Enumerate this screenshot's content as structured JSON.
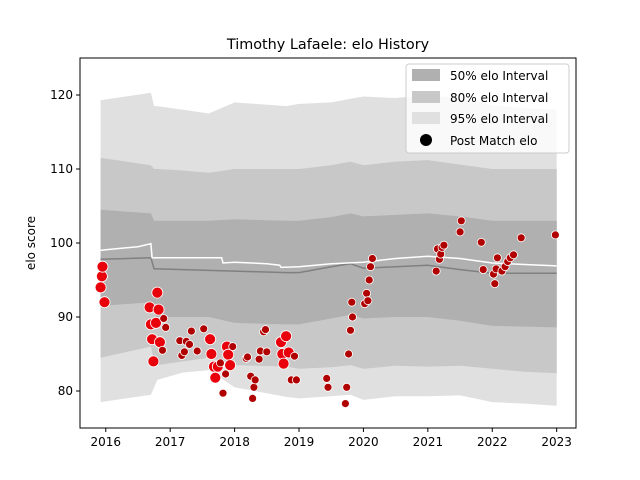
{
  "chart_data": {
    "type": "scatter",
    "title": "Timothy Lafaele: elo History",
    "xlabel": "",
    "ylabel": "elo score",
    "xlim": [
      2015.6,
      2023.3
    ],
    "ylim": [
      75,
      125
    ],
    "x_ticks": [
      2016,
      2017,
      2018,
      2019,
      2020,
      2021,
      2022,
      2023
    ],
    "x_tick_labels": [
      "2016",
      "2017",
      "2018",
      "2019",
      "2020",
      "2021",
      "2022",
      "2023"
    ],
    "y_ticks": [
      80,
      90,
      100,
      110,
      120
    ],
    "y_tick_labels": [
      "80",
      "90",
      "100",
      "110",
      "120"
    ],
    "legend_position": "top-right",
    "legend": [
      {
        "label": "50% elo Interval",
        "kind": "patch",
        "color": "#b0b0b0"
      },
      {
        "label": "80% elo Interval",
        "kind": "patch",
        "color": "#c8c8c8"
      },
      {
        "label": "95% elo Interval",
        "kind": "patch",
        "color": "#e0e0e0"
      },
      {
        "label": "Post Match elo",
        "kind": "marker",
        "color": "#000000"
      }
    ],
    "colors": {
      "band95": "#e0e0e0",
      "band80": "#c8c8c8",
      "band50": "#b0b0b0",
      "median_line": "#808080",
      "mean_line": "#ffffff",
      "points": "#e8000b",
      "points_dark": "#b00000"
    },
    "bands": {
      "x": [
        2015.92,
        2016.7,
        2016.75,
        2016.8,
        2017.2,
        2017.6,
        2018.0,
        2018.8,
        2019.0,
        2019.5,
        2019.8,
        2020.0,
        2020.5,
        2021.0,
        2021.5,
        2022.0,
        2022.5,
        2023.0
      ],
      "p95_low": [
        78.5,
        79.5,
        80.5,
        81.5,
        82.5,
        82.8,
        80.5,
        79.2,
        79.0,
        79.3,
        79.5,
        78.8,
        79.3,
        79.3,
        79.4,
        78.5,
        78.3,
        78.0
      ],
      "p80_low": [
        84.5,
        86.0,
        84.0,
        83.5,
        84.0,
        84.5,
        83.5,
        83.3,
        83.0,
        83.2,
        83.5,
        83.0,
        83.4,
        83.3,
        83.4,
        83.0,
        82.6,
        82.4
      ],
      "p50_low": [
        91.5,
        92.0,
        90.5,
        90.0,
        90.0,
        90.0,
        89.2,
        89.0,
        89.0,
        89.8,
        90.3,
        89.8,
        90.0,
        90.0,
        89.5,
        88.8,
        88.7,
        88.6
      ],
      "median": [
        97.8,
        98.0,
        96.5,
        96.5,
        96.4,
        96.3,
        96.2,
        96.0,
        96.0,
        96.8,
        97.2,
        96.6,
        96.8,
        97.0,
        96.4,
        95.9,
        95.9,
        95.9
      ],
      "p50_high": [
        104.5,
        104.0,
        103.0,
        103.0,
        103.0,
        103.0,
        103.2,
        103.0,
        103.0,
        103.5,
        104.0,
        103.6,
        103.8,
        104.0,
        103.6,
        103.0,
        103.0,
        103.0
      ],
      "p80_high": [
        111.5,
        110.5,
        110.0,
        110.0,
        109.8,
        109.5,
        110.0,
        110.0,
        110.0,
        110.5,
        111.0,
        110.5,
        111.0,
        111.2,
        110.6,
        110.0,
        110.0,
        110.0
      ],
      "p95_high": [
        119.3,
        120.3,
        118.5,
        118.5,
        118.0,
        117.5,
        119.0,
        118.5,
        118.8,
        119.0,
        119.5,
        119.8,
        119.6,
        120.0,
        119.5,
        118.6,
        118.2,
        118.0
      ]
    },
    "mean": {
      "x": [
        2015.92,
        2016.0,
        2016.5,
        2016.7,
        2016.72,
        2016.9,
        2017.5,
        2017.8,
        2017.82,
        2018.0,
        2018.5,
        2018.7,
        2018.72,
        2019.0,
        2019.5,
        2020.0,
        2020.5,
        2021.0,
        2021.5,
        2022.0,
        2022.5,
        2023.0
      ],
      "y": [
        99.0,
        99.1,
        99.5,
        99.9,
        98.0,
        98.0,
        98.0,
        98.0,
        97.3,
        97.4,
        97.2,
        97.0,
        96.7,
        96.8,
        97.2,
        97.4,
        97.9,
        98.2,
        97.9,
        97.3,
        97.1,
        96.9
      ]
    },
    "series": [
      {
        "name": "Post Match elo",
        "points": [
          {
            "x": 2015.92,
            "y": 94.0,
            "big": true
          },
          {
            "x": 2015.94,
            "y": 95.5,
            "big": true
          },
          {
            "x": 2015.95,
            "y": 96.8,
            "big": true
          },
          {
            "x": 2015.98,
            "y": 92.0,
            "big": true
          },
          {
            "x": 2016.68,
            "y": 91.3,
            "big": true
          },
          {
            "x": 2016.7,
            "y": 89.0,
            "big": true
          },
          {
            "x": 2016.72,
            "y": 87.0,
            "big": true
          },
          {
            "x": 2016.74,
            "y": 84.0,
            "big": true
          },
          {
            "x": 2016.78,
            "y": 89.2,
            "big": true
          },
          {
            "x": 2016.8,
            "y": 93.3,
            "big": true
          },
          {
            "x": 2016.82,
            "y": 91.0,
            "big": true
          },
          {
            "x": 2016.84,
            "y": 86.6,
            "big": true
          },
          {
            "x": 2016.88,
            "y": 85.5,
            "big": false
          },
          {
            "x": 2016.9,
            "y": 89.8,
            "big": false
          },
          {
            "x": 2016.93,
            "y": 88.6,
            "big": false
          },
          {
            "x": 2017.15,
            "y": 86.8,
            "big": false
          },
          {
            "x": 2017.18,
            "y": 84.8,
            "big": false
          },
          {
            "x": 2017.22,
            "y": 85.3,
            "big": false
          },
          {
            "x": 2017.25,
            "y": 86.7,
            "big": false
          },
          {
            "x": 2017.3,
            "y": 86.3,
            "big": false
          },
          {
            "x": 2017.33,
            "y": 88.1,
            "big": false
          },
          {
            "x": 2017.42,
            "y": 85.4,
            "big": false
          },
          {
            "x": 2017.52,
            "y": 88.4,
            "big": false
          },
          {
            "x": 2017.62,
            "y": 87.0,
            "big": true
          },
          {
            "x": 2017.64,
            "y": 85.0,
            "big": true
          },
          {
            "x": 2017.68,
            "y": 83.3,
            "big": true
          },
          {
            "x": 2017.7,
            "y": 81.8,
            "big": true
          },
          {
            "x": 2017.74,
            "y": 83.3,
            "big": true
          },
          {
            "x": 2017.78,
            "y": 83.8,
            "big": false
          },
          {
            "x": 2017.82,
            "y": 79.7,
            "big": false
          },
          {
            "x": 2017.86,
            "y": 82.3,
            "big": false
          },
          {
            "x": 2017.88,
            "y": 86.0,
            "big": true
          },
          {
            "x": 2017.9,
            "y": 84.9,
            "big": true
          },
          {
            "x": 2017.93,
            "y": 83.5,
            "big": true
          },
          {
            "x": 2017.97,
            "y": 86.0,
            "big": false
          },
          {
            "x": 2018.18,
            "y": 84.4,
            "big": false
          },
          {
            "x": 2018.2,
            "y": 84.6,
            "big": false
          },
          {
            "x": 2018.25,
            "y": 82.0,
            "big": false
          },
          {
            "x": 2018.28,
            "y": 79.0,
            "big": false
          },
          {
            "x": 2018.3,
            "y": 80.5,
            "big": false
          },
          {
            "x": 2018.32,
            "y": 81.5,
            "big": false
          },
          {
            "x": 2018.38,
            "y": 84.3,
            "big": false
          },
          {
            "x": 2018.4,
            "y": 85.4,
            "big": false
          },
          {
            "x": 2018.45,
            "y": 88.0,
            "big": false
          },
          {
            "x": 2018.48,
            "y": 88.3,
            "big": false
          },
          {
            "x": 2018.5,
            "y": 85.3,
            "big": false
          },
          {
            "x": 2018.72,
            "y": 86.6,
            "big": true
          },
          {
            "x": 2018.74,
            "y": 85.0,
            "big": true
          },
          {
            "x": 2018.76,
            "y": 83.7,
            "big": true
          },
          {
            "x": 2018.8,
            "y": 87.4,
            "big": true
          },
          {
            "x": 2018.84,
            "y": 85.2,
            "big": true
          },
          {
            "x": 2018.88,
            "y": 81.5,
            "big": false
          },
          {
            "x": 2018.93,
            "y": 84.7,
            "big": false
          },
          {
            "x": 2018.96,
            "y": 81.5,
            "big": false
          },
          {
            "x": 2019.43,
            "y": 81.7,
            "big": false
          },
          {
            "x": 2019.45,
            "y": 80.5,
            "big": false
          },
          {
            "x": 2019.72,
            "y": 78.3,
            "big": false
          },
          {
            "x": 2019.74,
            "y": 80.5,
            "big": false
          },
          {
            "x": 2019.77,
            "y": 85.0,
            "big": false
          },
          {
            "x": 2019.8,
            "y": 88.2,
            "big": false
          },
          {
            "x": 2019.83,
            "y": 90.0,
            "big": false
          },
          {
            "x": 2019.82,
            "y": 92.0,
            "big": false
          },
          {
            "x": 2020.02,
            "y": 91.8,
            "big": false
          },
          {
            "x": 2020.05,
            "y": 93.2,
            "big": false
          },
          {
            "x": 2020.07,
            "y": 92.2,
            "big": false
          },
          {
            "x": 2020.09,
            "y": 95.0,
            "big": false
          },
          {
            "x": 2020.11,
            "y": 96.8,
            "big": false
          },
          {
            "x": 2020.14,
            "y": 97.9,
            "big": false
          },
          {
            "x": 2021.13,
            "y": 96.2,
            "big": false
          },
          {
            "x": 2021.15,
            "y": 99.2,
            "big": false
          },
          {
            "x": 2021.18,
            "y": 97.8,
            "big": false
          },
          {
            "x": 2021.2,
            "y": 98.5,
            "big": false
          },
          {
            "x": 2021.22,
            "y": 99.4,
            "big": false
          },
          {
            "x": 2021.25,
            "y": 99.7,
            "big": false
          },
          {
            "x": 2021.5,
            "y": 101.5,
            "big": false
          },
          {
            "x": 2021.52,
            "y": 103.0,
            "big": false
          },
          {
            "x": 2021.83,
            "y": 100.1,
            "big": false
          },
          {
            "x": 2021.86,
            "y": 96.4,
            "big": false
          },
          {
            "x": 2022.02,
            "y": 95.8,
            "big": false
          },
          {
            "x": 2022.04,
            "y": 94.5,
            "big": false
          },
          {
            "x": 2022.06,
            "y": 96.5,
            "big": false
          },
          {
            "x": 2022.08,
            "y": 98.0,
            "big": false
          },
          {
            "x": 2022.15,
            "y": 96.2,
            "big": false
          },
          {
            "x": 2022.2,
            "y": 96.8,
            "big": false
          },
          {
            "x": 2022.24,
            "y": 97.5,
            "big": false
          },
          {
            "x": 2022.28,
            "y": 98.0,
            "big": false
          },
          {
            "x": 2022.33,
            "y": 98.4,
            "big": false
          },
          {
            "x": 2022.45,
            "y": 100.7,
            "big": false
          },
          {
            "x": 2022.98,
            "y": 101.1,
            "big": false
          }
        ]
      }
    ]
  }
}
